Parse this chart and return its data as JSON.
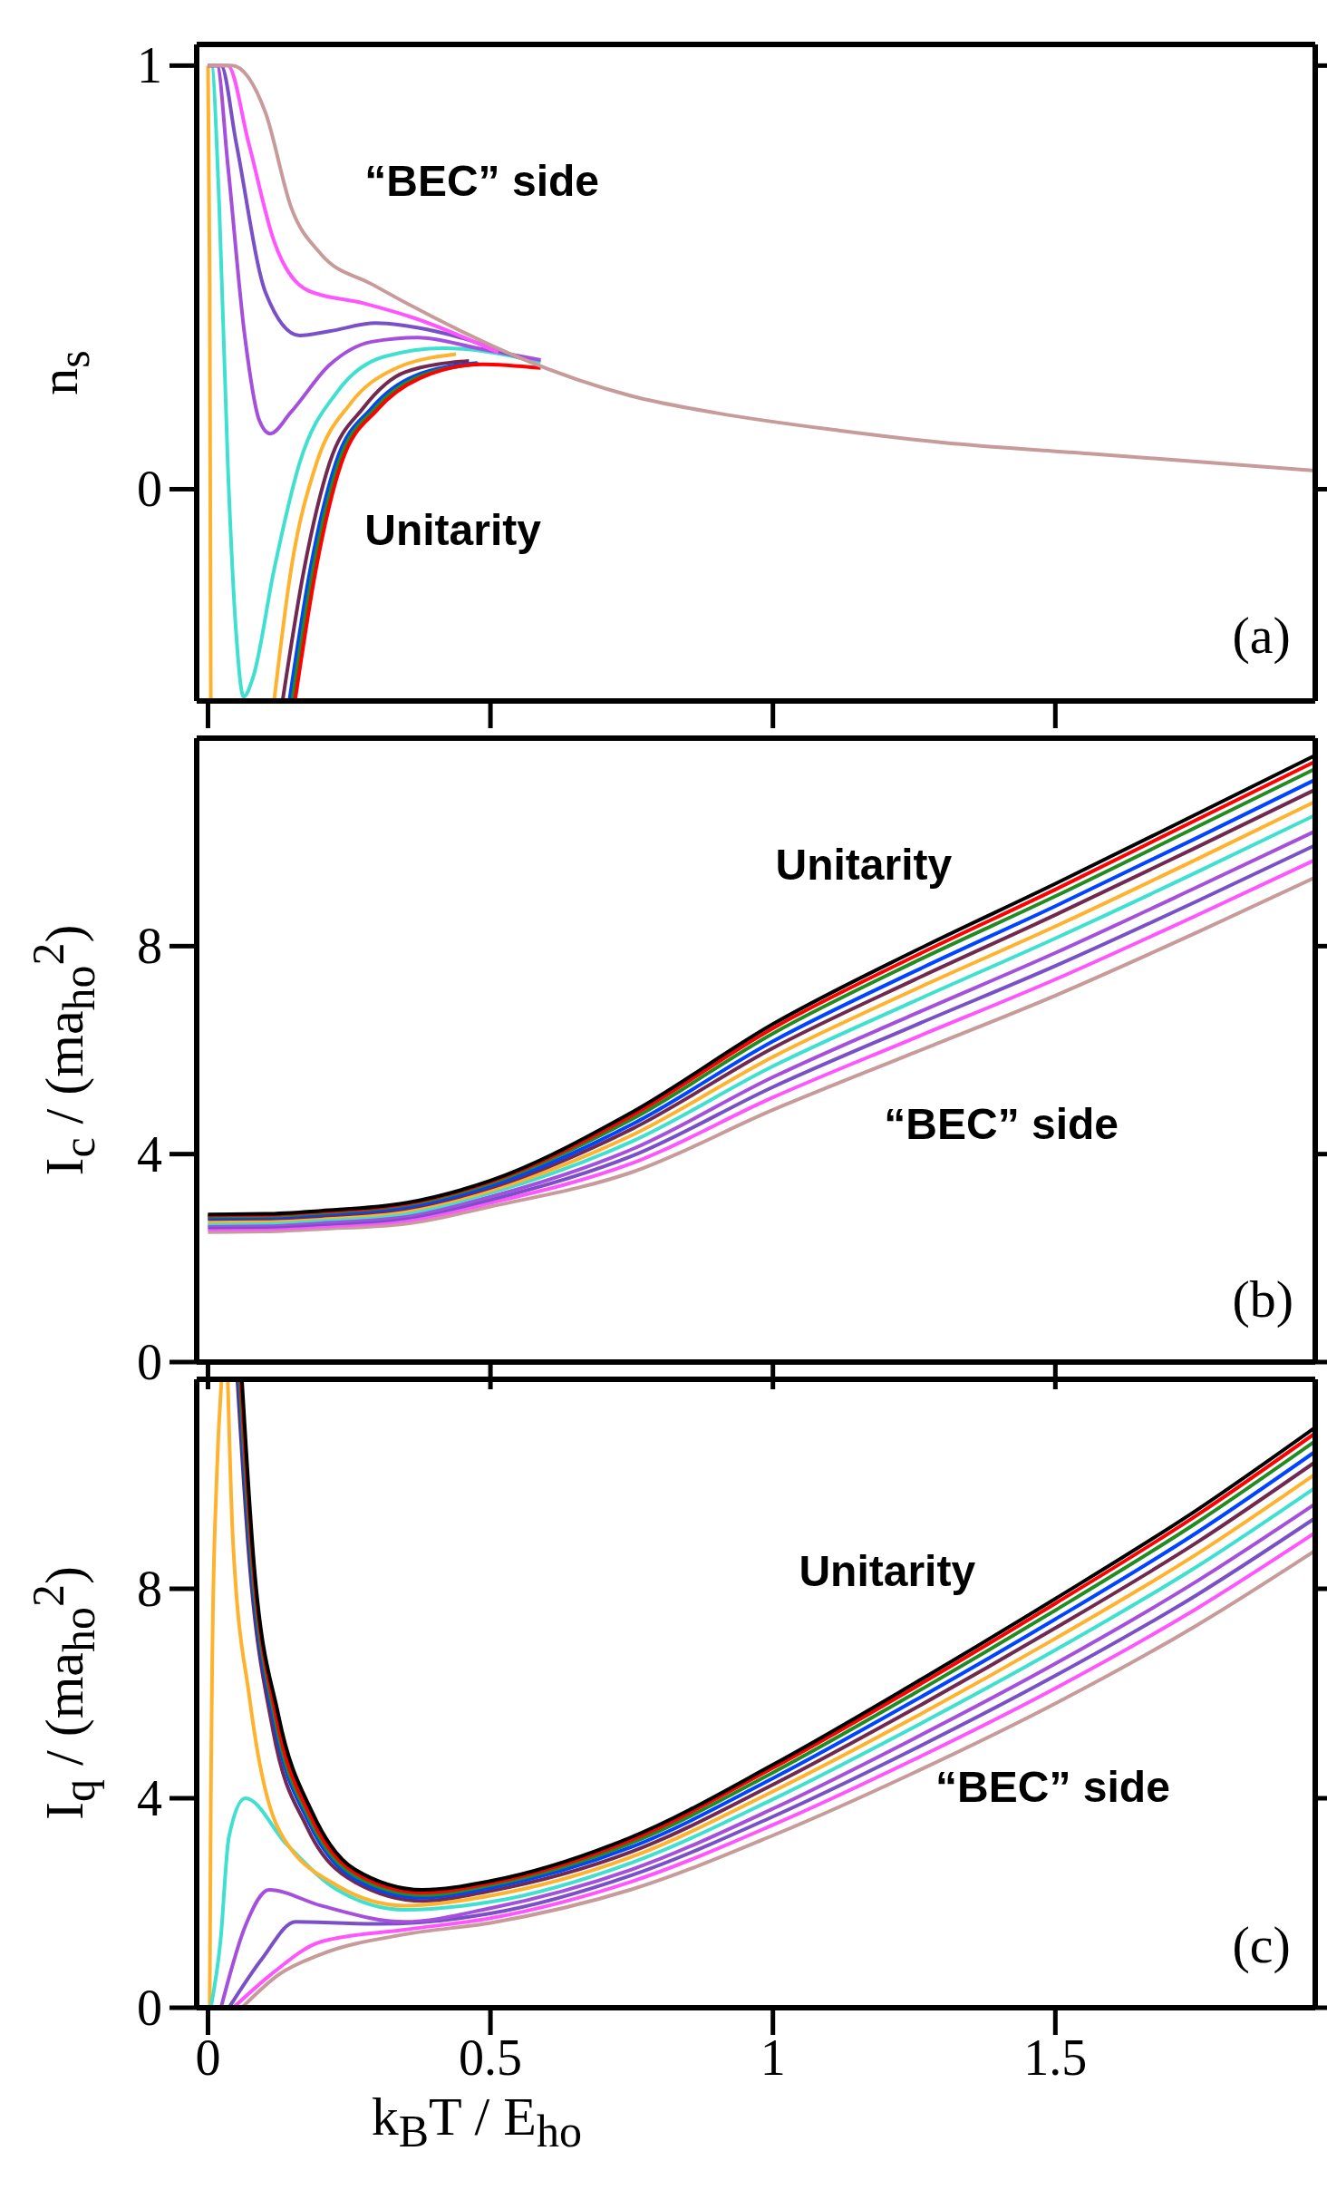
{
  "chart_data": [
    {
      "type": "line",
      "ylabel": "n$_{s}$",
      "xlim": [
        -0.02,
        1.96
      ],
      "ylim": [
        -0.5,
        1.05
      ],
      "xticks": [
        0,
        0.5,
        1,
        1.5
      ],
      "yticks": [
        0,
        1
      ],
      "tick_labels": "y",
      "annotations": [
        "“BEC” side",
        "Unitarity",
        "(a)"
      ],
      "series": [
        {
          "color": "#ffb22e",
          "x": [
            0,
            0.003,
            0.005
          ],
          "values": [
            1,
            0.5,
            -0.5
          ]
        },
        {
          "color": "#40e0d0",
          "x": [
            0,
            0.006,
            0.02,
            0.035,
            0.05,
            0.063,
            0.08,
            0.117,
            0.162,
            0.23,
            0.312,
            0.417,
            0.589
          ],
          "values": [
            1,
            1,
            0.666,
            0.061,
            -0.343,
            -0.49,
            -0.443,
            -0.19,
            0.061,
            0.232,
            0.313,
            0.333,
            0.3
          ]
        },
        {
          "color": "#a550dc",
          "x": [
            0,
            0.016,
            0.035,
            0.065,
            0.091,
            0.11,
            0.147,
            0.215,
            0.29,
            0.372,
            0.477,
            0.589
          ],
          "values": [
            1,
            1,
            0.767,
            0.363,
            0.162,
            0.131,
            0.182,
            0.293,
            0.348,
            0.358,
            0.333,
            0.305
          ]
        },
        {
          "color": "#7a50c8",
          "x": [
            0,
            0.023,
            0.05,
            0.102,
            0.162,
            0.215,
            0.297,
            0.402,
            0.552
          ],
          "values": [
            1,
            1,
            0.817,
            0.464,
            0.363,
            0.373,
            0.392,
            0.373,
            0.31
          ]
        },
        {
          "color": "#ff55ff",
          "x": [
            0,
            0.035,
            0.072,
            0.117,
            0.177,
            0.275,
            0.365,
            0.514
          ],
          "values": [
            1,
            1,
            0.817,
            0.585,
            0.469,
            0.439,
            0.404,
            0.323
          ]
        },
        {
          "color": "#ffb22e",
          "x": [
            0.117,
            0.147,
            0.192,
            0.252,
            0.327,
            0.439
          ],
          "values": [
            -0.5,
            -0.19,
            0.061,
            0.202,
            0.282,
            0.319
          ]
        },
        {
          "color": "#722950",
          "x": [
            0.132,
            0.17,
            0.215,
            0.275,
            0.35,
            0.462
          ],
          "values": [
            -0.5,
            -0.19,
            0.061,
            0.192,
            0.277,
            0.303
          ]
        },
        {
          "color": "#0044ff",
          "x": [
            0.144,
            0.181,
            0.226,
            0.29,
            0.365,
            0.477
          ],
          "values": [
            -0.5,
            -0.19,
            0.061,
            0.192,
            0.267,
            0.298
          ]
        },
        {
          "color": "#228b22",
          "x": [
            0.149,
            0.186,
            0.231,
            0.295,
            0.37,
            0.48
          ],
          "values": [
            -0.5,
            -0.19,
            0.061,
            0.19,
            0.264,
            0.296
          ]
        },
        {
          "color": "#ff0000",
          "x": [
            0.154,
            0.191,
            0.236,
            0.3,
            0.375,
            0.485,
            0.589
          ],
          "values": [
            -0.5,
            -0.19,
            0.061,
            0.188,
            0.262,
            0.295,
            0.286
          ]
        },
        {
          "color": "#c89b9b",
          "x": [
            0,
            0.042,
            0.102,
            0.147,
            0.2,
            0.29,
            0.402,
            0.552,
            0.75,
            0.9,
            1.12,
            1.3,
            1.56,
            1.96
          ],
          "values": [
            1,
            1,
            0.888,
            0.666,
            0.555,
            0.484,
            0.404,
            0.31,
            0.22,
            0.18,
            0.138,
            0.11,
            0.084,
            0.044
          ]
        }
      ]
    },
    {
      "type": "line",
      "ylabel": "I$_{c}$ / (ma$_{ho}$$^{2}$)",
      "xlim": [
        -0.02,
        1.96
      ],
      "ylim": [
        0,
        12
      ],
      "xticks": [
        0,
        0.5,
        1,
        1.5
      ],
      "yticks": [
        0,
        4,
        8
      ],
      "tick_labels": "y",
      "annotations": [
        "Unitarity",
        "“BEC” side",
        "(b)"
      ],
      "x": [
        0,
        0.1,
        0.2,
        0.35,
        0.5,
        0.75,
        1,
        1.25,
        1.5,
        1.75,
        1.96
      ],
      "series": [
        {
          "color": "#c89b9b",
          "values": [
            2.5,
            2.51,
            2.56,
            2.66,
            2.99,
            3.65,
            4.85,
            5.95,
            7.05,
            8.26,
            9.32
          ]
        },
        {
          "color": "#ff55ff",
          "values": [
            2.55,
            2.56,
            2.61,
            2.72,
            3.06,
            3.82,
            5.09,
            6.23,
            7.36,
            8.59,
            9.66
          ]
        },
        {
          "color": "#7a50c8",
          "values": [
            2.59,
            2.6,
            2.65,
            2.77,
            3.12,
            3.96,
            5.29,
            6.47,
            7.62,
            8.86,
            9.94
          ]
        },
        {
          "color": "#a550dc",
          "values": [
            2.63,
            2.64,
            2.69,
            2.81,
            3.18,
            4.09,
            5.48,
            6.69,
            7.87,
            9.13,
            10.21
          ]
        },
        {
          "color": "#40e0d0",
          "values": [
            2.67,
            2.68,
            2.74,
            2.86,
            3.25,
            4.24,
            5.69,
            6.94,
            8.15,
            9.42,
            10.52
          ]
        },
        {
          "color": "#ffb22e",
          "values": [
            2.71,
            2.72,
            2.78,
            2.91,
            3.3,
            4.36,
            5.87,
            7.16,
            8.38,
            9.67,
            10.78
          ]
        },
        {
          "color": "#722950",
          "values": [
            2.75,
            2.76,
            2.81,
            2.95,
            3.35,
            4.48,
            6.04,
            7.35,
            8.6,
            9.9,
            11.01
          ]
        },
        {
          "color": "#0044ff",
          "values": [
            2.77,
            2.78,
            2.84,
            2.98,
            3.39,
            4.57,
            6.17,
            7.51,
            8.77,
            10.08,
            11.2
          ]
        },
        {
          "color": "#228b22",
          "values": [
            2.8,
            2.81,
            2.87,
            3.02,
            3.44,
            4.67,
            6.32,
            7.69,
            8.96,
            10.29,
            11.41
          ]
        },
        {
          "color": "#ff0000",
          "values": [
            2.82,
            2.83,
            2.89,
            3.04,
            3.47,
            4.74,
            6.42,
            7.8,
            9.09,
            10.43,
            11.55
          ]
        },
        {
          "color": "#000000",
          "values": [
            2.84,
            2.85,
            2.91,
            3.06,
            3.49,
            4.8,
            6.5,
            7.9,
            9.2,
            10.54,
            11.67
          ]
        }
      ]
    },
    {
      "type": "line",
      "ylabel": "I$_{q}$ / (ma$_{ho}$$^{2}$)",
      "xlabel": "k$_{B}$T / E$_{ho}$",
      "xlim": [
        -0.02,
        1.96
      ],
      "ylim": [
        0,
        12
      ],
      "xticks": [
        0,
        0.5,
        1,
        1.5
      ],
      "yticks": [
        0,
        4,
        8
      ],
      "annotations": [
        "Unitarity",
        "“BEC” side",
        "(c)"
      ],
      "series": [
        {
          "color": "#ffb22e",
          "x": [
            0.003,
            0.005,
            0.008,
            0.015,
            0.024
          ],
          "values": [
            0,
            4,
            7,
            10,
            12
          ]
        },
        {
          "color": "#c89b9b",
          "x": [
            0.06,
            0.125,
            0.2,
            0.348,
            0.5,
            0.75,
            1,
            1.25,
            1.5,
            1.75,
            1.96
          ],
          "values": [
            0,
            0.63,
            1.02,
            1.4,
            1.62,
            2.26,
            3.29,
            4.49,
            5.81,
            7.3,
            8.73
          ]
        },
        {
          "color": "#ff55ff",
          "x": [
            0.045,
            0.111,
            0.2,
            0.348,
            0.5,
            0.75,
            1,
            1.25,
            1.5,
            1.75,
            1.96
          ],
          "values": [
            0,
            0.63,
            1.26,
            1.49,
            1.71,
            2.41,
            3.49,
            4.74,
            6.1,
            7.62,
            9.07
          ]
        },
        {
          "color": "#7a50c8",
          "x": [
            0.037,
            0.096,
            0.155,
            0.303,
            0.5,
            0.75,
            1,
            1.25,
            1.5,
            1.75,
            1.96
          ],
          "values": [
            0,
            0.94,
            1.64,
            1.6,
            1.8,
            2.53,
            3.65,
            4.94,
            6.34,
            7.88,
            9.35
          ]
        },
        {
          "color": "#a550dc",
          "x": [
            0.023,
            0.066,
            0.108,
            0.2,
            0.348,
            0.5,
            0.75,
            1,
            1.25,
            1.5,
            1.75,
            1.96
          ],
          "values": [
            0,
            1.56,
            2.25,
            1.95,
            1.64,
            1.9,
            2.64,
            3.8,
            5.14,
            6.57,
            8.14,
            9.62
          ]
        },
        {
          "color": "#40e0d0",
          "x": [
            0.005,
            0.022,
            0.037,
            0.066,
            0.14,
            0.229,
            0.348,
            0.5,
            0.75,
            1,
            1.25,
            1.5,
            1.75,
            1.96
          ],
          "values": [
            0,
            1.26,
            3.26,
            4,
            3.11,
            2.25,
            1.87,
            2.02,
            2.77,
            3.98,
            5.36,
            6.83,
            8.42,
            9.93
          ]
        },
        {
          "color": "#ffb22e",
          "x": [
            0.035,
            0.044,
            0.074,
            0.125,
            0.229,
            0.348,
            0.5,
            0.75,
            1,
            1.25,
            1.5,
            1.75,
            1.96
          ],
          "values": [
            12,
            8.96,
            5.88,
            3.41,
            2.33,
            1.95,
            2.14,
            2.88,
            4.13,
            5.54,
            7.05,
            8.66,
            10.19
          ]
        },
        {
          "color": "#722950",
          "x": [
            0.052,
            0.072,
            0.115,
            0.175,
            0.26,
            0.38,
            0.5,
            0.75,
            1,
            1.25,
            1.5,
            1.75,
            1.96
          ],
          "values": [
            12,
            8.7,
            5.3,
            3.45,
            2.4,
            2.04,
            2.23,
            2.98,
            4.26,
            5.71,
            7.25,
            8.88,
            10.42
          ]
        },
        {
          "color": "#0044ff",
          "x": [
            0.054,
            0.074,
            0.118,
            0.178,
            0.26,
            0.38,
            0.5,
            0.75,
            1,
            1.25,
            1.5,
            1.75,
            1.96
          ],
          "values": [
            12,
            8.7,
            5.4,
            3.55,
            2.46,
            2.1,
            2.29,
            3.07,
            4.38,
            5.86,
            7.42,
            9.07,
            10.62
          ]
        },
        {
          "color": "#228b22",
          "x": [
            0.056,
            0.076,
            0.12,
            0.18,
            0.26,
            0.38,
            0.5,
            0.75,
            1,
            1.25,
            1.5,
            1.75,
            1.96
          ],
          "values": [
            12,
            8.7,
            5.45,
            3.6,
            2.52,
            2.15,
            2.34,
            3.15,
            4.49,
            6,
            7.59,
            9.26,
            10.82
          ]
        },
        {
          "color": "#ff0000",
          "x": [
            0.058,
            0.078,
            0.122,
            0.182,
            0.26,
            0.38,
            0.5,
            0.75,
            1,
            1.25,
            1.5,
            1.75,
            1.96
          ],
          "values": [
            12,
            8.7,
            5.5,
            3.65,
            2.58,
            2.2,
            2.38,
            3.21,
            4.58,
            6.11,
            7.72,
            9.4,
            10.97
          ]
        },
        {
          "color": "#000000",
          "x": [
            0.06,
            0.08,
            0.125,
            0.185,
            0.26,
            0.38,
            0.5,
            0.75,
            1,
            1.25,
            1.5,
            1.75,
            1.96
          ],
          "values": [
            12,
            8.66,
            5.57,
            3.72,
            2.64,
            2.25,
            2.42,
            3.26,
            4.64,
            6.19,
            7.81,
            9.5,
            11.08
          ]
        }
      ]
    }
  ]
}
